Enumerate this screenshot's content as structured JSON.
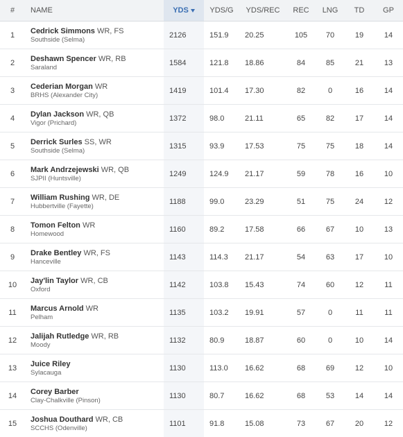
{
  "columns": {
    "rank": "#",
    "name": "NAME",
    "yds": "YDS",
    "yds_g": "YDS/G",
    "yds_rec": "YDS/REC",
    "rec": "REC",
    "lng": "LNG",
    "td": "TD",
    "gp": "GP"
  },
  "sorted_column": "yds",
  "colors": {
    "header_bg": "#f1f3f5",
    "sorted_header_bg": "#dfe6ef",
    "sorted_header_text": "#3b6fb3",
    "sorted_cell_bg": "#f4f6f9"
  },
  "rows": [
    {
      "rank": "1",
      "name": "Cedrick Simmons",
      "pos": "WR, FS",
      "school": "Southside (Selma)",
      "yds": "2126",
      "yds_g": "151.9",
      "yds_rec": "20.25",
      "rec": "105",
      "lng": "70",
      "td": "19",
      "gp": "14"
    },
    {
      "rank": "2",
      "name": "Deshawn Spencer",
      "pos": "WR, RB",
      "school": "Saraland",
      "yds": "1584",
      "yds_g": "121.8",
      "yds_rec": "18.86",
      "rec": "84",
      "lng": "85",
      "td": "21",
      "gp": "13"
    },
    {
      "rank": "3",
      "name": "Cederian Morgan",
      "pos": "WR",
      "school": "BRHS (Alexander City)",
      "yds": "1419",
      "yds_g": "101.4",
      "yds_rec": "17.30",
      "rec": "82",
      "lng": "0",
      "td": "16",
      "gp": "14"
    },
    {
      "rank": "4",
      "name": "Dylan Jackson",
      "pos": "WR, QB",
      "school": "Vigor (Prichard)",
      "yds": "1372",
      "yds_g": "98.0",
      "yds_rec": "21.11",
      "rec": "65",
      "lng": "82",
      "td": "17",
      "gp": "14"
    },
    {
      "rank": "5",
      "name": "Derrick Surles",
      "pos": "SS, WR",
      "school": "Southside (Selma)",
      "yds": "1315",
      "yds_g": "93.9",
      "yds_rec": "17.53",
      "rec": "75",
      "lng": "75",
      "td": "18",
      "gp": "14"
    },
    {
      "rank": "6",
      "name": "Mark Andrzejewski",
      "pos": "WR, QB",
      "school": "SJPII (Huntsville)",
      "yds": "1249",
      "yds_g": "124.9",
      "yds_rec": "21.17",
      "rec": "59",
      "lng": "78",
      "td": "16",
      "gp": "10"
    },
    {
      "rank": "7",
      "name": "William Rushing",
      "pos": "WR, DE",
      "school": "Hubbertville (Fayette)",
      "yds": "1188",
      "yds_g": "99.0",
      "yds_rec": "23.29",
      "rec": "51",
      "lng": "75",
      "td": "24",
      "gp": "12"
    },
    {
      "rank": "8",
      "name": "Tomon Felton",
      "pos": "WR",
      "school": "Homewood",
      "yds": "1160",
      "yds_g": "89.2",
      "yds_rec": "17.58",
      "rec": "66",
      "lng": "67",
      "td": "10",
      "gp": "13"
    },
    {
      "rank": "9",
      "name": "Drake Bentley",
      "pos": "WR, FS",
      "school": "Hanceville",
      "yds": "1143",
      "yds_g": "114.3",
      "yds_rec": "21.17",
      "rec": "54",
      "lng": "63",
      "td": "17",
      "gp": "10"
    },
    {
      "rank": "10",
      "name": "Jay'lin Taylor",
      "pos": "WR, CB",
      "school": "Oxford",
      "yds": "1142",
      "yds_g": "103.8",
      "yds_rec": "15.43",
      "rec": "74",
      "lng": "60",
      "td": "12",
      "gp": "11"
    },
    {
      "rank": "11",
      "name": "Marcus Arnold",
      "pos": "WR",
      "school": "Pelham",
      "yds": "1135",
      "yds_g": "103.2",
      "yds_rec": "19.91",
      "rec": "57",
      "lng": "0",
      "td": "11",
      "gp": "11"
    },
    {
      "rank": "12",
      "name": "Jalijah Rutledge",
      "pos": "WR, RB",
      "school": "Moody",
      "yds": "1132",
      "yds_g": "80.9",
      "yds_rec": "18.87",
      "rec": "60",
      "lng": "0",
      "td": "10",
      "gp": "14"
    },
    {
      "rank": "13",
      "name": "Juice Riley",
      "pos": "",
      "school": "Sylacauga",
      "yds": "1130",
      "yds_g": "113.0",
      "yds_rec": "16.62",
      "rec": "68",
      "lng": "69",
      "td": "12",
      "gp": "10"
    },
    {
      "rank": "14",
      "name": "Corey Barber",
      "pos": "",
      "school": "Clay-Chalkville (Pinson)",
      "yds": "1130",
      "yds_g": "80.7",
      "yds_rec": "16.62",
      "rec": "68",
      "lng": "53",
      "td": "14",
      "gp": "14"
    },
    {
      "rank": "15",
      "name": "Joshua Douthard",
      "pos": "WR, CB",
      "school": "SCCHS (Odenville)",
      "yds": "1101",
      "yds_g": "91.8",
      "yds_rec": "15.08",
      "rec": "73",
      "lng": "67",
      "td": "20",
      "gp": "12"
    }
  ]
}
